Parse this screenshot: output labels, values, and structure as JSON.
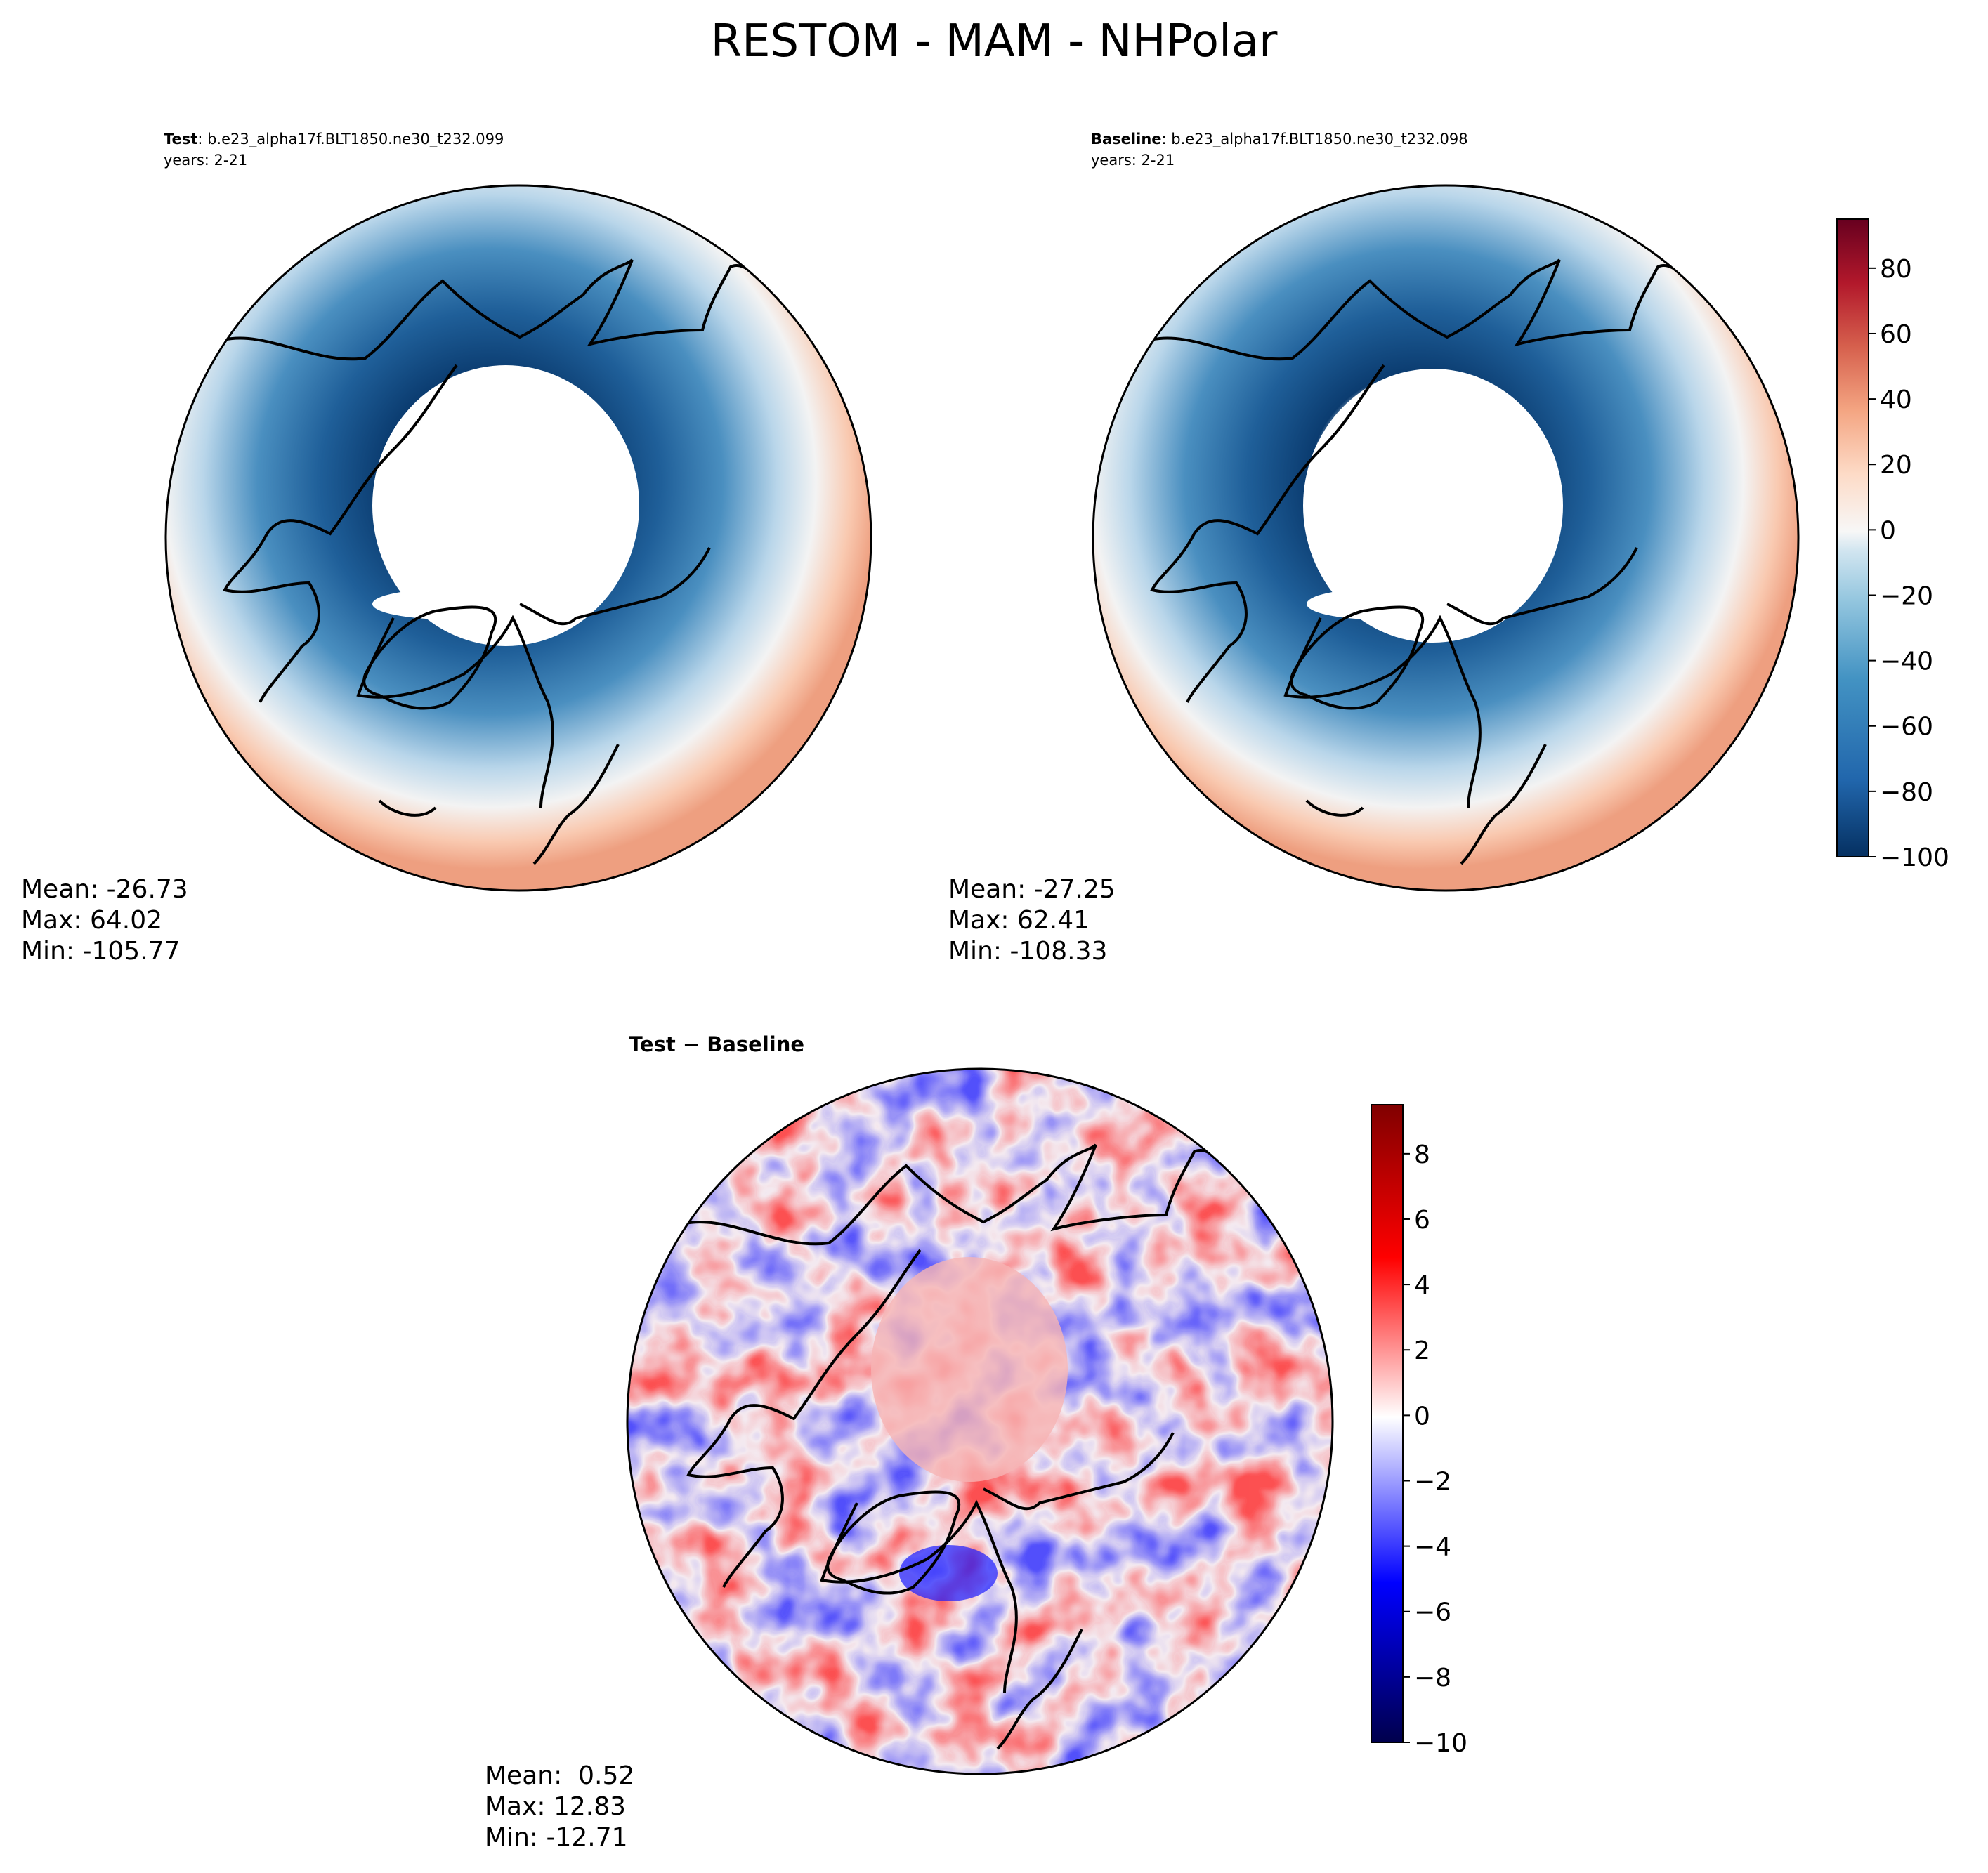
{
  "figure": {
    "title": "RESTOM - MAM - NHPolar"
  },
  "chart_data": [
    {
      "type": "heatmap",
      "panel": "test",
      "header_bold": "Test",
      "header_rest": ": b.e23_alpha17f.BLT1850.ne30_t232.099",
      "years": "years: 2-21",
      "stats": {
        "mean": "Mean: -26.73",
        "max": "Max: 64.02",
        "min": "Min: -105.77"
      },
      "projection": "north-polar-stereographic",
      "colormap": "RdBu_r",
      "vmin": -100,
      "vmax": 95
    },
    {
      "type": "heatmap",
      "panel": "baseline",
      "header_bold": "Baseline",
      "header_rest": ": b.e23_alpha17f.BLT1850.ne30_t232.098",
      "years": "years: 2-21",
      "stats": {
        "mean": "Mean: -27.25",
        "max": "Max: 62.41",
        "min": "Min: -108.33"
      },
      "projection": "north-polar-stereographic",
      "colormap": "RdBu_r",
      "vmin": -100,
      "vmax": 95,
      "colorbar": {
        "ticks": [
          "80",
          "60",
          "40",
          "20",
          "0",
          "−20",
          "−40",
          "−60",
          "−80",
          "−100"
        ],
        "tick_values": [
          80,
          60,
          40,
          20,
          0,
          -20,
          -40,
          -60,
          -80,
          -100
        ]
      }
    },
    {
      "type": "heatmap",
      "panel": "difference",
      "header_bold": "Test − Baseline",
      "stats": {
        "mean": "Mean:  0.52",
        "max": "Max: 12.83",
        "min": "Min: -12.71"
      },
      "projection": "north-polar-stereographic",
      "colormap": "seismic",
      "vmin": -10,
      "vmax": 9.5,
      "colorbar": {
        "ticks": [
          "8",
          "6",
          "4",
          "2",
          "0",
          "−2",
          "−4",
          "−6",
          "−8",
          "−10"
        ],
        "tick_values": [
          8,
          6,
          4,
          2,
          0,
          -2,
          -4,
          -6,
          -8,
          -10
        ]
      }
    }
  ]
}
